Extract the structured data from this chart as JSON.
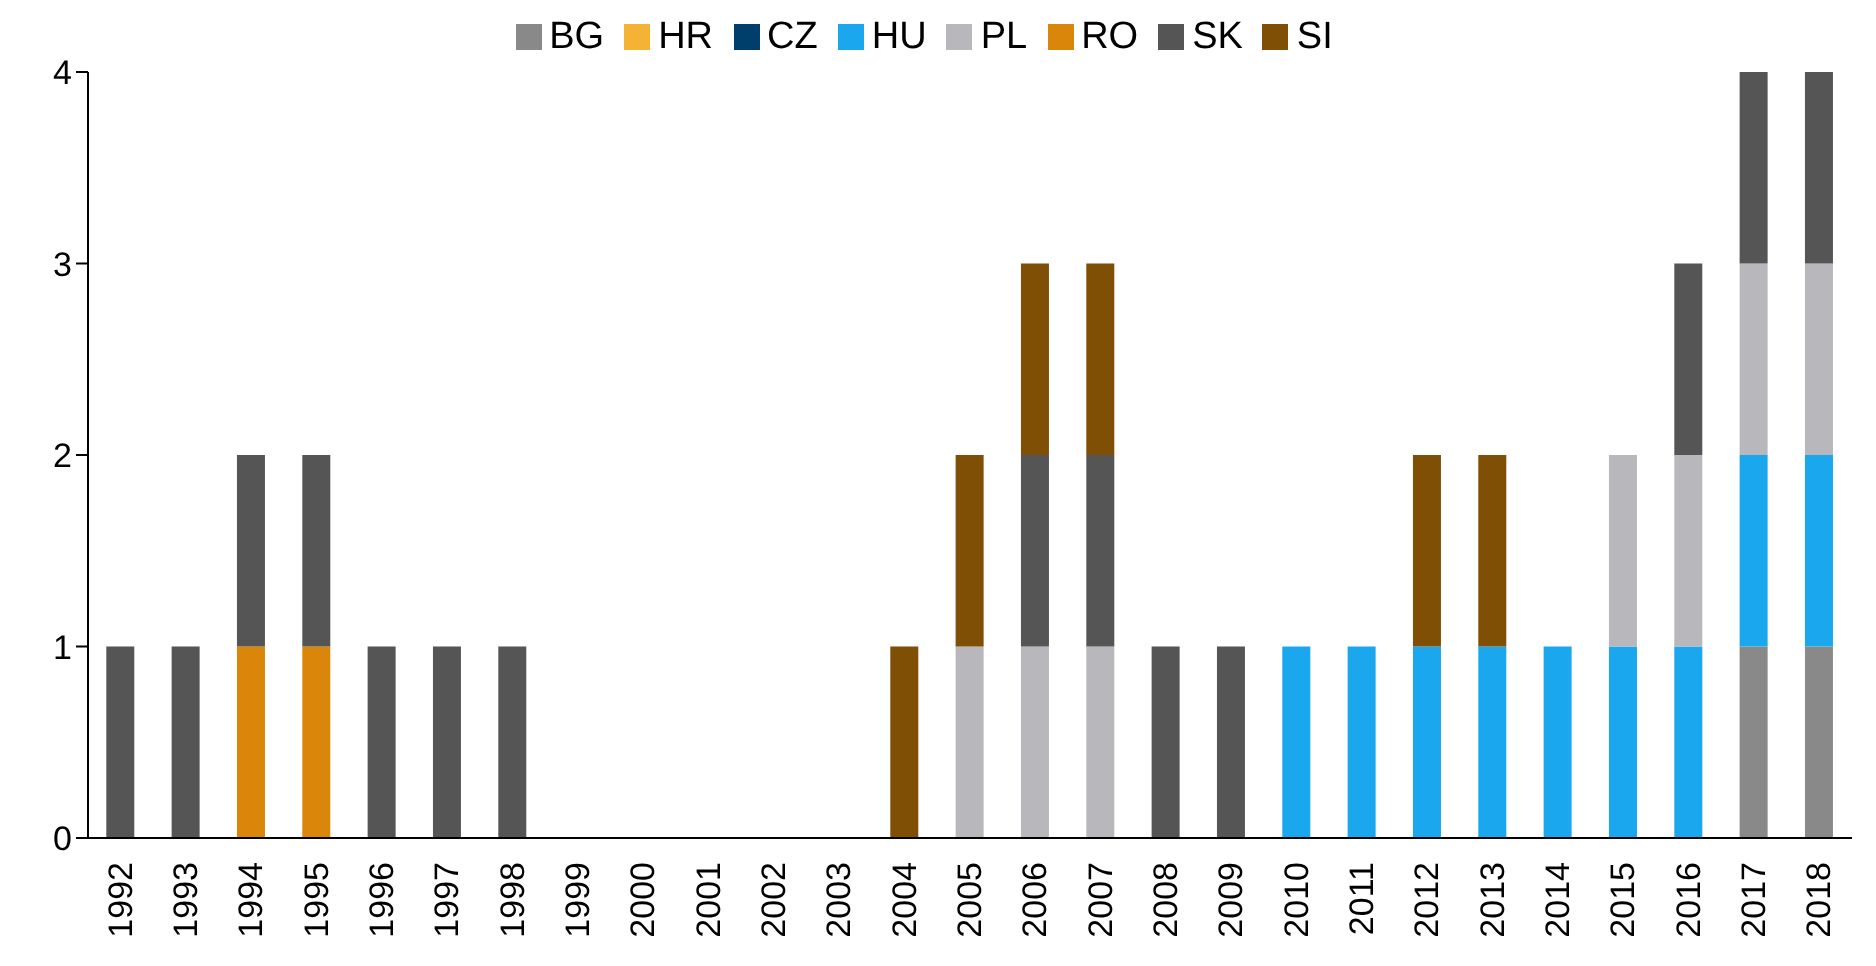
{
  "chart_data": {
    "type": "bar",
    "stacked": true,
    "legend": "top",
    "grid": false,
    "categories": [
      "1992",
      "1993",
      "1994",
      "1995",
      "1996",
      "1997",
      "1998",
      "1999",
      "2000",
      "2001",
      "2002",
      "2003",
      "2004",
      "2005",
      "2006",
      "2007",
      "2008",
      "2009",
      "2010",
      "2011",
      "2012",
      "2013",
      "2014",
      "2015",
      "2016",
      "2017",
      "2018"
    ],
    "ylim": [
      0,
      4
    ],
    "yticks": [
      0,
      1,
      2,
      3,
      4
    ],
    "series": [
      {
        "name": "BG",
        "color": "#898989",
        "values": [
          0,
          0,
          0,
          0,
          0,
          0,
          0,
          0,
          0,
          0,
          0,
          0,
          0,
          0,
          0,
          0,
          0,
          0,
          0,
          0,
          0,
          0,
          0,
          0,
          0,
          1,
          1
        ]
      },
      {
        "name": "HR",
        "color": "#f5b335",
        "values": [
          0,
          0,
          0,
          0,
          0,
          0,
          0,
          0,
          0,
          0,
          0,
          0,
          0,
          0,
          0,
          0,
          0,
          0,
          0,
          0,
          0,
          0,
          0,
          0,
          0,
          0,
          0
        ]
      },
      {
        "name": "CZ",
        "color": "#003e6b",
        "values": [
          0,
          0,
          0,
          0,
          0,
          0,
          0,
          0,
          0,
          0,
          0,
          0,
          0,
          0,
          0,
          0,
          0,
          0,
          0,
          0,
          0,
          0,
          0,
          0,
          0,
          0,
          0
        ]
      },
      {
        "name": "HU",
        "color": "#1aa7ee",
        "values": [
          0,
          0,
          0,
          0,
          0,
          0,
          0,
          0,
          0,
          0,
          0,
          0,
          0,
          0,
          0,
          0,
          0,
          0,
          1,
          1,
          1,
          1,
          1,
          1,
          1,
          1,
          1
        ]
      },
      {
        "name": "PL",
        "color": "#b8b8bc",
        "values": [
          0,
          0,
          0,
          0,
          0,
          0,
          0,
          0,
          0,
          0,
          0,
          0,
          0,
          1,
          1,
          1,
          0,
          0,
          0,
          0,
          0,
          0,
          0,
          1,
          1,
          1,
          1
        ]
      },
      {
        "name": "RO",
        "color": "#d9860b",
        "values": [
          0,
          0,
          1,
          1,
          0,
          0,
          0,
          0,
          0,
          0,
          0,
          0,
          0,
          0,
          0,
          0,
          0,
          0,
          0,
          0,
          0,
          0,
          0,
          0,
          0,
          0,
          0
        ]
      },
      {
        "name": "SK",
        "color": "#555555",
        "values": [
          1,
          1,
          1,
          1,
          1,
          1,
          1,
          0,
          0,
          0,
          0,
          0,
          0,
          0,
          1,
          1,
          1,
          1,
          0,
          0,
          0,
          0,
          0,
          0,
          1,
          1,
          1
        ]
      },
      {
        "name": "SI",
        "color": "#7f4f06",
        "values": [
          0,
          0,
          0,
          0,
          0,
          0,
          0,
          0,
          0,
          0,
          0,
          0,
          1,
          1,
          1,
          1,
          0,
          0,
          0,
          0,
          1,
          1,
          0,
          0,
          0,
          0,
          0
        ]
      }
    ]
  }
}
